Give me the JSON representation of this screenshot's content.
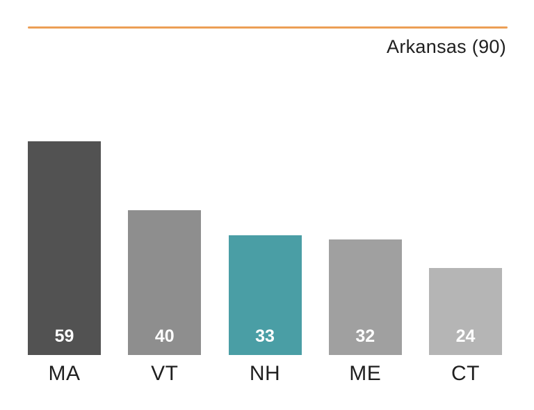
{
  "header": {
    "title": "Arkansas (90)",
    "rule_color": "#ec9f55",
    "title_color": "#1f1f1f"
  },
  "chart_data": {
    "type": "bar",
    "title": "Arkansas (90)",
    "categories": [
      "MA",
      "VT",
      "NH",
      "ME",
      "CT"
    ],
    "values": [
      59,
      40,
      33,
      32,
      24
    ],
    "xlabel": "",
    "ylabel": "",
    "ylim": [
      0,
      60
    ],
    "grid": false,
    "legend": false,
    "bar_colors": [
      "#525252",
      "#8e8e8e",
      "#4a9ea5",
      "#a0a0a0",
      "#b5b5b5"
    ],
    "highlight_index": 2,
    "highlight_color": "#4a9ea5",
    "value_label_color": "#ffffff",
    "category_label_color": "#1f1f1f"
  }
}
